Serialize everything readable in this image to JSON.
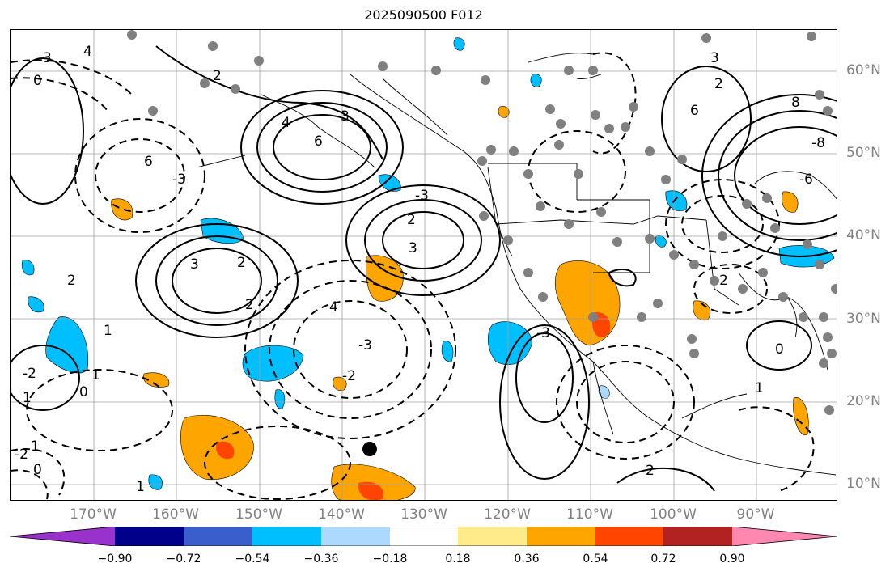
{
  "title": "2025090500 F012",
  "lat_labels": [
    "60°N",
    "50°N",
    "40°N",
    "30°N",
    "20°N",
    "10°N"
  ],
  "lon_labels": [
    "170°W",
    "160°W",
    "150°W",
    "140°W",
    "130°W",
    "120°W",
    "110°W",
    "100°W",
    "90°W"
  ],
  "colorbar": {
    "ticks": [
      "−0.90",
      "−0.72",
      "−0.54",
      "−0.36",
      "−0.18",
      "0.18",
      "0.36",
      "0.54",
      "0.72",
      "0.90"
    ],
    "colors": [
      "#9932cc",
      "#00008b",
      "#3a5fcd",
      "#00bfff",
      "#add8ff",
      "#ffffff",
      "#ffeb8a",
      "#ffa500",
      "#ff4500",
      "#b22222",
      "#ff88b0"
    ]
  },
  "contour_labels": [
    "4",
    "3",
    "0",
    "6",
    "4",
    "3",
    "2",
    "6",
    "-3",
    "3",
    "2",
    "2",
    "1",
    "2",
    "1",
    "0",
    "-2",
    "1",
    "-3",
    "-2",
    "1",
    "-2",
    "0",
    "1",
    "2",
    "3",
    "-3",
    "4",
    "-8",
    "-6",
    "8",
    "6",
    "2",
    "3",
    "1",
    "0",
    "-2",
    "-3",
    "2"
  ],
  "colors": {
    "stations": "#808080",
    "marker": "#000000",
    "grid": "#a0a0a0"
  }
}
